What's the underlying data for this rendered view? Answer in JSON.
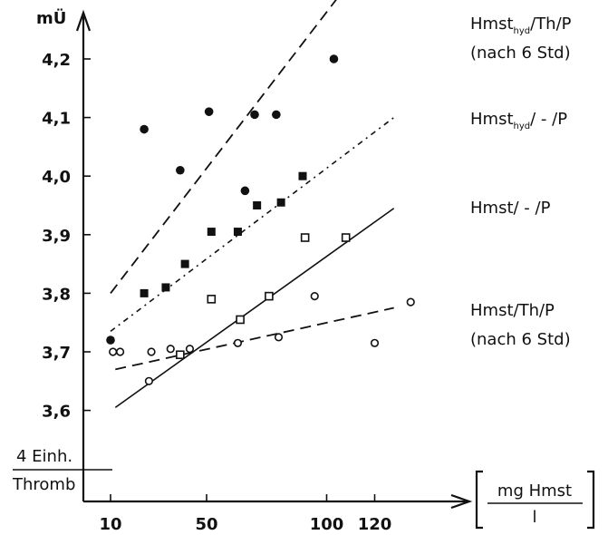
{
  "chart_data": {
    "type": "scatter",
    "title": "",
    "ylabel": "mÜ",
    "xlabel": "[ mg Hmst / l ]",
    "xlabel_numerator": "mg Hmst",
    "xlabel_denominator": "l",
    "y_scale_note_top": "4 Einh.",
    "y_scale_note_bottom": "Thromb",
    "x_ticks": [
      10,
      50,
      100,
      120
    ],
    "x_tick_labels": [
      "10",
      "50",
      "100",
      "120"
    ],
    "y_ticks": [
      3.6,
      3.7,
      3.8,
      3.9,
      4.0,
      4.1,
      4.2
    ],
    "y_tick_labels": [
      "3,6",
      "3,7",
      "3,8",
      "3,9",
      "4,0",
      "4,1",
      "4,2"
    ],
    "xlim": [
      0,
      135
    ],
    "ylim": [
      3.45,
      4.28
    ],
    "grid": false,
    "series": [
      {
        "name": "Hmst_hyd / Th / P (nach 6 Std)",
        "label_main": "Hmst",
        "label_sub": "hyd",
        "label_rest": "/Th/P",
        "label_line2": "(nach 6 Std)",
        "marker": "filled-circle",
        "line": "dashed",
        "points": [
          [
            10,
            3.72
          ],
          [
            24,
            4.08
          ],
          [
            39,
            4.01
          ],
          [
            51,
            4.11
          ],
          [
            66,
            3.975
          ],
          [
            70,
            4.105
          ],
          [
            79,
            4.105
          ],
          [
            103,
            4.2
          ]
        ],
        "fit": [
          [
            10,
            3.8
          ],
          [
            115,
            4.36
          ]
        ]
      },
      {
        "name": "Hmst_hyd / - / P",
        "label_main": "Hmst",
        "label_sub": "hyd",
        "label_rest": "/ - /P",
        "marker": "filled-square",
        "line": "dashdot",
        "points": [
          [
            24,
            3.8
          ],
          [
            33,
            3.81
          ],
          [
            41,
            3.85
          ],
          [
            52,
            3.905
          ],
          [
            63,
            3.905
          ],
          [
            71,
            3.95
          ],
          [
            81,
            3.955
          ],
          [
            90,
            4.0
          ]
        ],
        "fit": [
          [
            10,
            3.735
          ],
          [
            128,
            4.1
          ]
        ]
      },
      {
        "name": "Hmst / - / P",
        "label_main": "Hmst/ - /P",
        "marker": "open-square",
        "line": "solid",
        "points": [
          [
            39,
            3.695
          ],
          [
            52,
            3.79
          ],
          [
            64,
            3.755
          ],
          [
            76,
            3.795
          ],
          [
            91,
            3.895
          ],
          [
            108,
            3.895
          ]
        ],
        "fit": [
          [
            12,
            3.605
          ],
          [
            128,
            3.945
          ]
        ]
      },
      {
        "name": "Hmst / Th / P (nach 6 Std)",
        "label_main": "Hmst/Th/P",
        "label_line2": "(nach 6 Std)",
        "marker": "open-circle",
        "line": "dashed",
        "points": [
          [
            11,
            3.7
          ],
          [
            14,
            3.7
          ],
          [
            26,
            3.65
          ],
          [
            27,
            3.7
          ],
          [
            35,
            3.705
          ],
          [
            43,
            3.705
          ],
          [
            63,
            3.715
          ],
          [
            80,
            3.725
          ],
          [
            95,
            3.795
          ],
          [
            120,
            3.715
          ],
          [
            135,
            3.785
          ]
        ],
        "fit": [
          [
            12,
            3.67
          ],
          [
            128,
            3.775
          ]
        ]
      }
    ]
  }
}
